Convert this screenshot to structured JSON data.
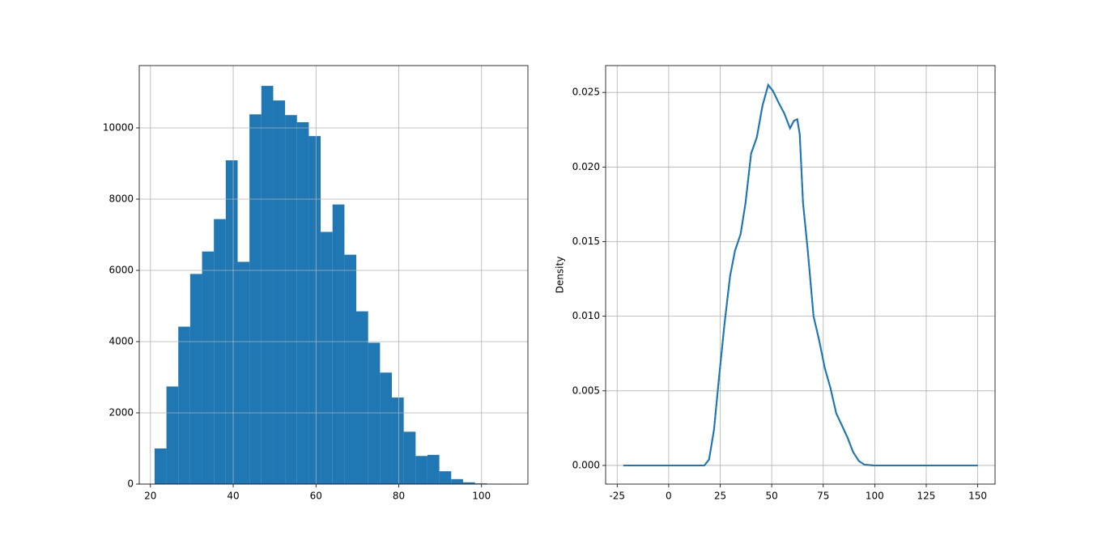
{
  "chart_data": [
    {
      "type": "histogram",
      "color": "#1f77b4",
      "grid": true,
      "bins": [
        21,
        23.87,
        26.73,
        29.6,
        32.47,
        35.33,
        38.2,
        41.07,
        43.93,
        46.8,
        49.67,
        52.53,
        55.4,
        58.27,
        61.13,
        64,
        66.87,
        69.73,
        72.6,
        75.47,
        78.33,
        81.2,
        84.07,
        86.93,
        89.8,
        92.67,
        95.53,
        98.4,
        101.27,
        104.13,
        107
      ],
      "values": [
        1000,
        2740,
        4420,
        5900,
        6530,
        7440,
        9090,
        6240,
        10380,
        11180,
        10770,
        10360,
        10160,
        9770,
        7080,
        7850,
        6440,
        4850,
        3970,
        3130,
        2430,
        1470,
        790,
        820,
        360,
        140,
        50,
        20,
        5,
        2
      ],
      "xlim": [
        17.3,
        111.2
      ],
      "xticks": [
        20,
        40,
        60,
        80,
        100
      ],
      "ylim": [
        0,
        11750
      ],
      "yticks": [
        0,
        2000,
        4000,
        6000,
        8000,
        10000
      ]
    },
    {
      "type": "line",
      "color": "#1f77b4",
      "grid": true,
      "ylabel": "Density",
      "x": [
        -22,
        0,
        15,
        17.3,
        19.6,
        22,
        24.3,
        27.1,
        29.8,
        32.2,
        34.9,
        37.3,
        40,
        42.8,
        45.5,
        48.3,
        50.6,
        53.4,
        56.1,
        58.9,
        60.8,
        62.4,
        63.6,
        65.2,
        67.5,
        70.3,
        73,
        75.8,
        78.5,
        81.3,
        84,
        86.7,
        89.5,
        92.3,
        95,
        99.7,
        125,
        150
      ],
      "values": [
        0,
        0,
        0,
        0,
        0.0004,
        0.0024,
        0.0057,
        0.0095,
        0.0127,
        0.0144,
        0.0155,
        0.0176,
        0.0209,
        0.022,
        0.0241,
        0.0255,
        0.0251,
        0.0243,
        0.0236,
        0.0226,
        0.0231,
        0.0232,
        0.0222,
        0.0176,
        0.0144,
        0.01,
        0.0084,
        0.0065,
        0.0052,
        0.0035,
        0.0027,
        0.0019,
        0.0009,
        0.0003,
        5e-05,
        0,
        0,
        0
      ],
      "xlim": [
        -30.6,
        158.4
      ],
      "xticks": [
        -25,
        0,
        25,
        50,
        75,
        100,
        125,
        150
      ],
      "ylim": [
        -0.00125,
        0.0268
      ],
      "yticks": [
        {
          "value": 0,
          "label": "0.000"
        },
        {
          "value": 0.005,
          "label": "0.005"
        },
        {
          "value": 0.01,
          "label": "0.010"
        },
        {
          "value": 0.015,
          "label": "0.015"
        },
        {
          "value": 0.02,
          "label": "0.020"
        },
        {
          "value": 0.025,
          "label": "0.025"
        }
      ]
    }
  ]
}
